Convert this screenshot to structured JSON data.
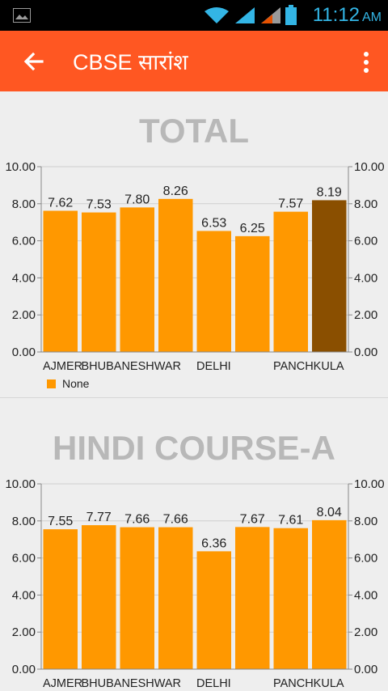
{
  "status_bar": {
    "time": "11:12",
    "ampm": "AM",
    "icons": [
      "gallery-icon",
      "wifi-icon",
      "signal-icon",
      "signal-icon",
      "battery-icon"
    ]
  },
  "app_bar": {
    "title": "CBSE सारांश",
    "back_icon": "arrow-back-icon",
    "menu_icon": "more-vert-icon"
  },
  "colors": {
    "accent": "#ff5722",
    "bar": "#ff9800",
    "bar_highlight": "#8a4f00",
    "title_gray": "#b8b8b8"
  },
  "legend": {
    "label": "None"
  },
  "chart_data": [
    {
      "type": "bar",
      "title": "TOTAL",
      "categories": [
        "AJMER",
        "BHUBANESHWAR",
        "",
        "",
        "DELHI",
        "",
        "PANCHKULA",
        ""
      ],
      "values": [
        7.62,
        7.53,
        7.8,
        8.26,
        6.53,
        6.25,
        7.57,
        8.19
      ],
      "value_labels": [
        "7.62",
        "7.53",
        "7.80",
        "8.26",
        "6.53",
        "6.25",
        "7.57",
        "8.19"
      ],
      "highlight_index": 7,
      "ylim": [
        0,
        10
      ],
      "yticks": [
        "0.00",
        "2.00",
        "4.00",
        "6.00",
        "8.00",
        "10.00"
      ],
      "dual_y_axis": true,
      "grid": true,
      "legend": "bottom-left"
    },
    {
      "type": "bar",
      "title": "HINDI COURSE-A",
      "categories": [
        "AJMER",
        "BHUBANESHWAR",
        "",
        "",
        "DELHI",
        "",
        "PANCHKULA",
        ""
      ],
      "values": [
        7.55,
        7.77,
        7.66,
        7.66,
        6.36,
        7.67,
        7.61,
        8.04
      ],
      "value_labels": [
        "7.55",
        "7.77",
        "7.66",
        "7.66",
        "6.36",
        "7.67",
        "7.61",
        "8.04"
      ],
      "highlight_index": -1,
      "ylim": [
        0,
        10
      ],
      "yticks": [
        "0.00",
        "2.00",
        "4.00",
        "6.00",
        "8.00",
        "10.00"
      ],
      "dual_y_axis": true,
      "grid": true
    }
  ]
}
